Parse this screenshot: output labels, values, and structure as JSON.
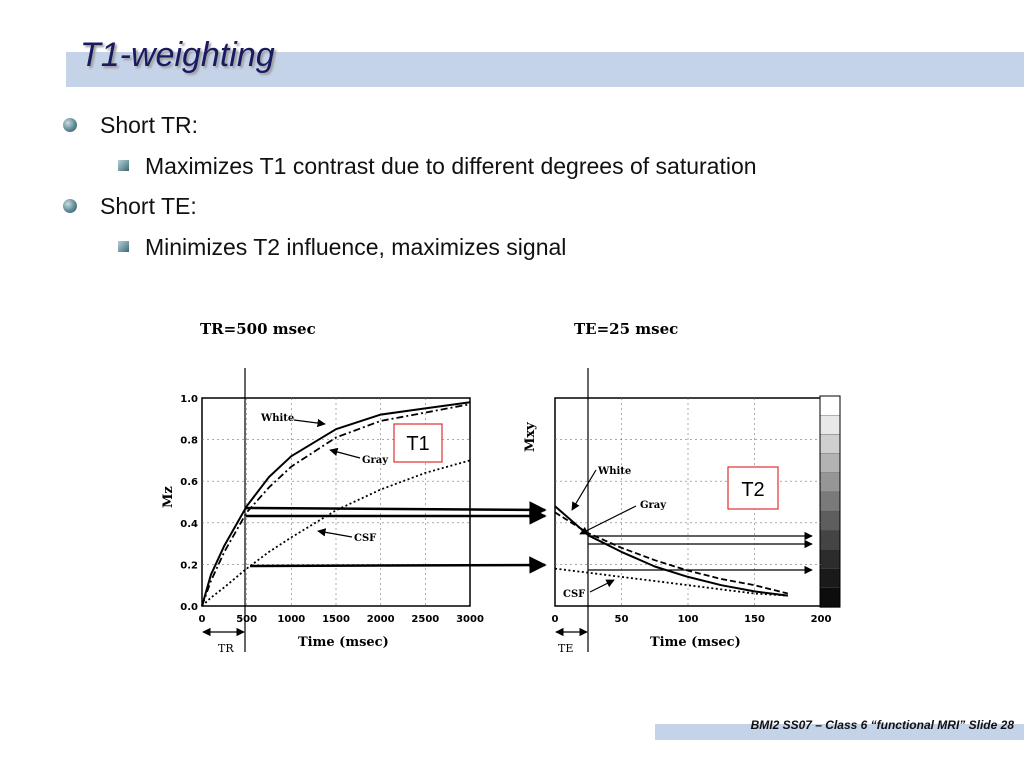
{
  "slide": {
    "title": "T1-weighting",
    "bullets": [
      {
        "label": "Short TR:",
        "sub": "Maximizes T1 contrast due to different degrees of saturation"
      },
      {
        "label": "Short TE:",
        "sub": "Minimizes T2 influence, maximizes signal"
      }
    ],
    "footer": "BMI2 SS07 – Class 6 “functional MRI” Slide 28",
    "accent_color": "#c5d3e8",
    "box_labels": {
      "t1": "T1",
      "t2": "T2"
    },
    "box_color": "#e03030"
  },
  "chart_data": [
    {
      "type": "line",
      "title": "TR=500 msec",
      "xlabel": "Time (msec)",
      "ylabel": "Mz",
      "xlim": [
        0,
        3000
      ],
      "ylim": [
        0,
        1.0
      ],
      "xticks": [
        0,
        500,
        1000,
        1500,
        2000,
        2500,
        3000
      ],
      "xtick_labels": [
        "0",
        "500",
        "1000",
        "1500",
        "2000",
        "2500",
        "3000"
      ],
      "yticks": [
        0,
        0.2,
        0.4,
        0.6,
        0.8,
        1.0
      ],
      "ytick_labels": [
        "0.0",
        "0.2",
        "0.4",
        "0.6",
        "0.8",
        "1.0"
      ],
      "grid": true,
      "marker": {
        "label": "TR",
        "x": 500
      },
      "series": [
        {
          "name": "White",
          "style": "solid",
          "x": [
            0,
            100,
            250,
            500,
            750,
            1000,
            1500,
            2000,
            2500,
            3000
          ],
          "y": [
            0.0,
            0.15,
            0.29,
            0.48,
            0.62,
            0.72,
            0.85,
            0.92,
            0.95,
            0.98
          ]
        },
        {
          "name": "Gray",
          "style": "dashdot",
          "x": [
            0,
            100,
            250,
            500,
            750,
            1000,
            1500,
            2000,
            2500,
            3000
          ],
          "y": [
            0.0,
            0.12,
            0.26,
            0.45,
            0.57,
            0.67,
            0.81,
            0.89,
            0.93,
            0.97
          ]
        },
        {
          "name": "CSF",
          "style": "dotted",
          "x": [
            0,
            100,
            250,
            500,
            750,
            1000,
            1500,
            2000,
            2500,
            3000
          ],
          "y": [
            0.0,
            0.04,
            0.09,
            0.18,
            0.26,
            0.33,
            0.46,
            0.56,
            0.64,
            0.7
          ]
        }
      ]
    },
    {
      "type": "line",
      "title": "TE=25 msec",
      "xlabel": "Time (msec)",
      "ylabel": "Mxy",
      "xlim": [
        0,
        200
      ],
      "ylim": [
        0,
        1.0
      ],
      "xticks": [
        0,
        50,
        100,
        150,
        200
      ],
      "xtick_labels": [
        "0",
        "50",
        "100",
        "150",
        "200"
      ],
      "grid": true,
      "marker": {
        "label": "TE",
        "x": 25
      },
      "series": [
        {
          "name": "White",
          "style": "solid",
          "x": [
            0,
            25,
            50,
            75,
            100,
            125,
            150,
            175
          ],
          "y": [
            0.48,
            0.34,
            0.26,
            0.19,
            0.14,
            0.1,
            0.07,
            0.05
          ]
        },
        {
          "name": "Gray",
          "style": "dashed",
          "x": [
            0,
            25,
            50,
            75,
            100,
            125,
            150,
            175
          ],
          "y": [
            0.45,
            0.35,
            0.28,
            0.22,
            0.17,
            0.13,
            0.1,
            0.06
          ]
        },
        {
          "name": "CSF",
          "style": "dotted",
          "x": [
            0,
            25,
            50,
            75,
            100,
            125,
            150,
            175
          ],
          "y": [
            0.18,
            0.16,
            0.14,
            0.12,
            0.1,
            0.08,
            0.06,
            0.05
          ]
        }
      ]
    }
  ]
}
